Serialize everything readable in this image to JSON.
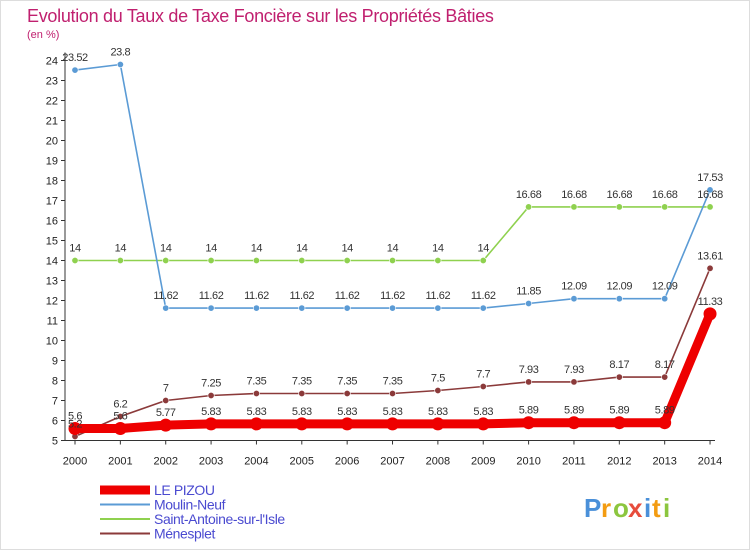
{
  "chart_data": {
    "type": "line",
    "title": "Evolution du Taux de Taxe Foncière sur les Propriétés Bâties",
    "ylabel": "(en %)",
    "xlabel": "",
    "ylim": [
      5,
      24
    ],
    "yticks": [
      "5",
      "6",
      "7",
      "8",
      "9",
      "10",
      "11",
      "12",
      "13",
      "14",
      "15",
      "16",
      "17",
      "18",
      "19",
      "20",
      "21",
      "22",
      "23",
      "24"
    ],
    "categories": [
      "2000",
      "2001",
      "2002",
      "2003",
      "2004",
      "2005",
      "2006",
      "2007",
      "2008",
      "2009",
      "2010",
      "2011",
      "2012",
      "2013",
      "2014"
    ],
    "series": [
      {
        "name": "LE PIZOU",
        "color": "#ee0000",
        "values": [
          5.6,
          5.6,
          5.77,
          5.83,
          5.83,
          5.83,
          5.83,
          5.83,
          5.83,
          5.83,
          5.89,
          5.89,
          5.89,
          5.89,
          11.33
        ],
        "labels": [
          "5.6",
          "5.6",
          "5.77",
          "5.83",
          "5.83",
          "5.83",
          "5.83",
          "5.83",
          "5.83",
          "5.83",
          "5.89",
          "5.89",
          "5.89",
          "5.89",
          "11.33"
        ]
      },
      {
        "name": "Moulin-Neuf",
        "color": "#5b9bd5",
        "values": [
          23.52,
          23.8,
          11.62,
          11.62,
          11.62,
          11.62,
          11.62,
          11.62,
          11.62,
          11.62,
          11.85,
          12.09,
          12.09,
          12.09,
          17.53
        ],
        "labels": [
          "23.52",
          "23.8",
          "11.62",
          "11.62",
          "11.62",
          "11.62",
          "11.62",
          "11.62",
          "11.62",
          "11.62",
          "11.85",
          "12.09",
          "12.09",
          "12.09",
          "17.53"
        ]
      },
      {
        "name": "Saint-Antoine-sur-l'Isle",
        "color": "#8fd14f",
        "values": [
          14,
          14,
          14,
          14,
          14,
          14,
          14,
          14,
          14,
          14,
          16.68,
          16.68,
          16.68,
          16.68,
          16.68
        ],
        "labels": [
          "14",
          "14",
          "14",
          "14",
          "14",
          "14",
          "14",
          "14",
          "14",
          "14",
          "16.68",
          "16.68",
          "16.68",
          "16.68",
          "16.68"
        ]
      },
      {
        "name": "Ménesplet",
        "color": "#8b3a3a",
        "values": [
          5.2,
          6.2,
          7,
          7.25,
          7.35,
          7.35,
          7.35,
          7.35,
          7.5,
          7.7,
          7.93,
          7.93,
          8.17,
          8.17,
          13.61
        ],
        "labels": [
          "5.2",
          "6.2",
          "7",
          "7.25",
          "7.35",
          "7.35",
          "7.35",
          "7.35",
          "7.5",
          "7.7",
          "7.93",
          "7.93",
          "8.17",
          "8.17",
          "13.61"
        ]
      }
    ],
    "legend_position": "bottom-left",
    "grid": false
  },
  "brand": {
    "letters": [
      "P",
      "r",
      "o",
      "x",
      "i",
      "t",
      "i"
    ],
    "colors": [
      "#4a90d9",
      "#f39c12",
      "#8cc63f",
      "#e74c3c",
      "#4a90d9",
      "#f39c12",
      "#8cc63f"
    ]
  },
  "colors": {
    "title": "#c0206f",
    "axis": "#333333"
  }
}
